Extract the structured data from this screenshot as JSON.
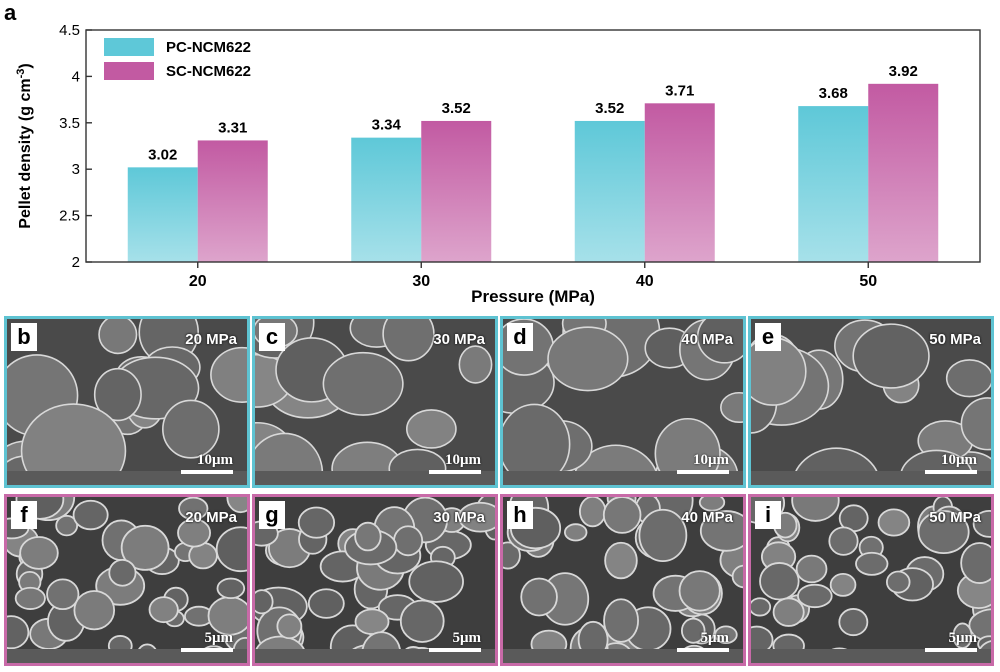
{
  "panel_a_letter": "a",
  "chart_data": {
    "type": "bar",
    "categories": [
      "20",
      "30",
      "40",
      "50"
    ],
    "series": [
      {
        "name": "PC-NCM622",
        "values": [
          3.02,
          3.34,
          3.52,
          3.68
        ],
        "color": "#5ec8d8"
      },
      {
        "name": "SC-NCM622",
        "values": [
          3.31,
          3.52,
          3.71,
          3.92
        ],
        "color": "#c25aa2"
      }
    ],
    "title": "",
    "xlabel": "Pressure (MPa)",
    "ylabel_prefix": "Pellet density (g cm",
    "ylabel_sup": "-3",
    "ylabel_suffix": ")",
    "ylim": [
      2,
      4.5
    ],
    "yticks": [
      "2",
      "2.5",
      "3",
      "3.5",
      "4",
      "4.5"
    ],
    "data_labels": [
      [
        "3.02",
        "3.34",
        "3.52",
        "3.68"
      ],
      [
        "3.31",
        "3.52",
        "3.71",
        "3.92"
      ]
    ],
    "legend": "top-left",
    "grid": false
  },
  "sem_panels": {
    "top": [
      {
        "letter": "b",
        "pressure": "20 MPa",
        "scale": "10μm"
      },
      {
        "letter": "c",
        "pressure": "30 MPa",
        "scale": "10μm"
      },
      {
        "letter": "d",
        "pressure": "40 MPa",
        "scale": "10μm"
      },
      {
        "letter": "e",
        "pressure": "50 MPa",
        "scale": "10μm"
      }
    ],
    "bottom": [
      {
        "letter": "f",
        "pressure": "20 MPa",
        "scale": "5μm"
      },
      {
        "letter": "g",
        "pressure": "30 MPa",
        "scale": "5μm"
      },
      {
        "letter": "h",
        "pressure": "40 MPa",
        "scale": "5μm"
      },
      {
        "letter": "i",
        "pressure": "50 MPa",
        "scale": "5μm"
      }
    ]
  }
}
